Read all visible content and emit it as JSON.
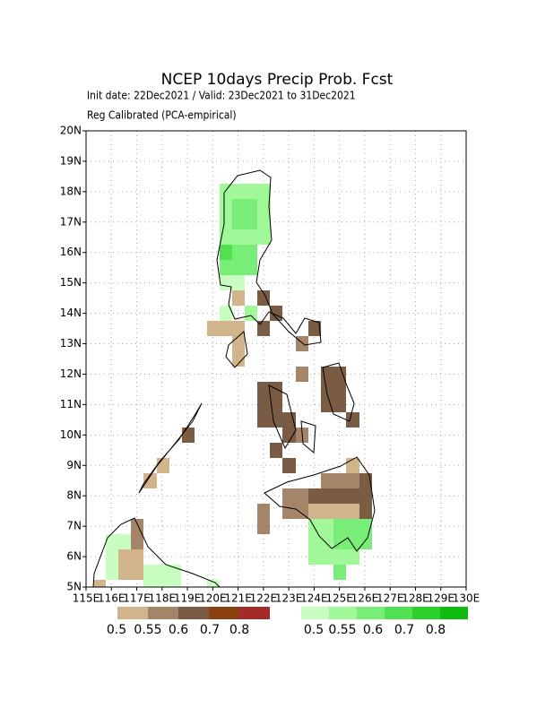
{
  "header": {
    "title": "NCEP 10days Precip Prob. Fcst",
    "init_line": "Init date: 22Dec2021 / Valid: 23Dec2021 to 31Dec2021",
    "method_line": "Reg Calibrated (PCA-empirical)"
  },
  "map": {
    "lon_range": [
      115,
      130
    ],
    "lat_range": [
      5,
      20
    ],
    "lon_ticks": [
      {
        "value": 115,
        "label": "115E"
      },
      {
        "value": 116,
        "label": "116E"
      },
      {
        "value": 117,
        "label": "117E"
      },
      {
        "value": 118,
        "label": "118E"
      },
      {
        "value": 119,
        "label": "119E"
      },
      {
        "value": 120,
        "label": "120E"
      },
      {
        "value": 121,
        "label": "121E"
      },
      {
        "value": 122,
        "label": "122E"
      },
      {
        "value": 123,
        "label": "123E"
      },
      {
        "value": 124,
        "label": "124E"
      },
      {
        "value": 125,
        "label": "125E"
      },
      {
        "value": 126,
        "label": "126E"
      },
      {
        "value": 127,
        "label": "127E"
      },
      {
        "value": 128,
        "label": "128E"
      },
      {
        "value": 129,
        "label": "129E"
      },
      {
        "value": 130,
        "label": "130E"
      }
    ],
    "lat_ticks": [
      {
        "value": 5,
        "label": "5N"
      },
      {
        "value": 6,
        "label": "6N"
      },
      {
        "value": 7,
        "label": "7N"
      },
      {
        "value": 8,
        "label": "8N"
      },
      {
        "value": 9,
        "label": "9N"
      },
      {
        "value": 10,
        "label": "10N"
      },
      {
        "value": 11,
        "label": "11N"
      },
      {
        "value": 12,
        "label": "12N"
      },
      {
        "value": 13,
        "label": "13N"
      },
      {
        "value": 14,
        "label": "14N"
      },
      {
        "value": 15,
        "label": "15N"
      },
      {
        "value": 16,
        "label": "16N"
      },
      {
        "value": 17,
        "label": "17N"
      },
      {
        "value": 18,
        "label": "18N"
      },
      {
        "value": 19,
        "label": "19N"
      },
      {
        "value": 20,
        "label": "20N"
      }
    ]
  },
  "legend": {
    "dry": {
      "colors": [
        "#d2b48c",
        "#a4856a",
        "#7a5c45",
        "#8b4010",
        "#a52a2a"
      ],
      "labels": [
        0.5,
        0.55,
        0.6,
        0.7,
        0.8
      ]
    },
    "wet": {
      "colors": [
        "#c8ffc0",
        "#a0f898",
        "#78ee78",
        "#50e050",
        "#2cd02c",
        "#10bb10"
      ],
      "labels": [
        0.5,
        0.55,
        0.6,
        0.7,
        0.8
      ]
    }
  }
}
